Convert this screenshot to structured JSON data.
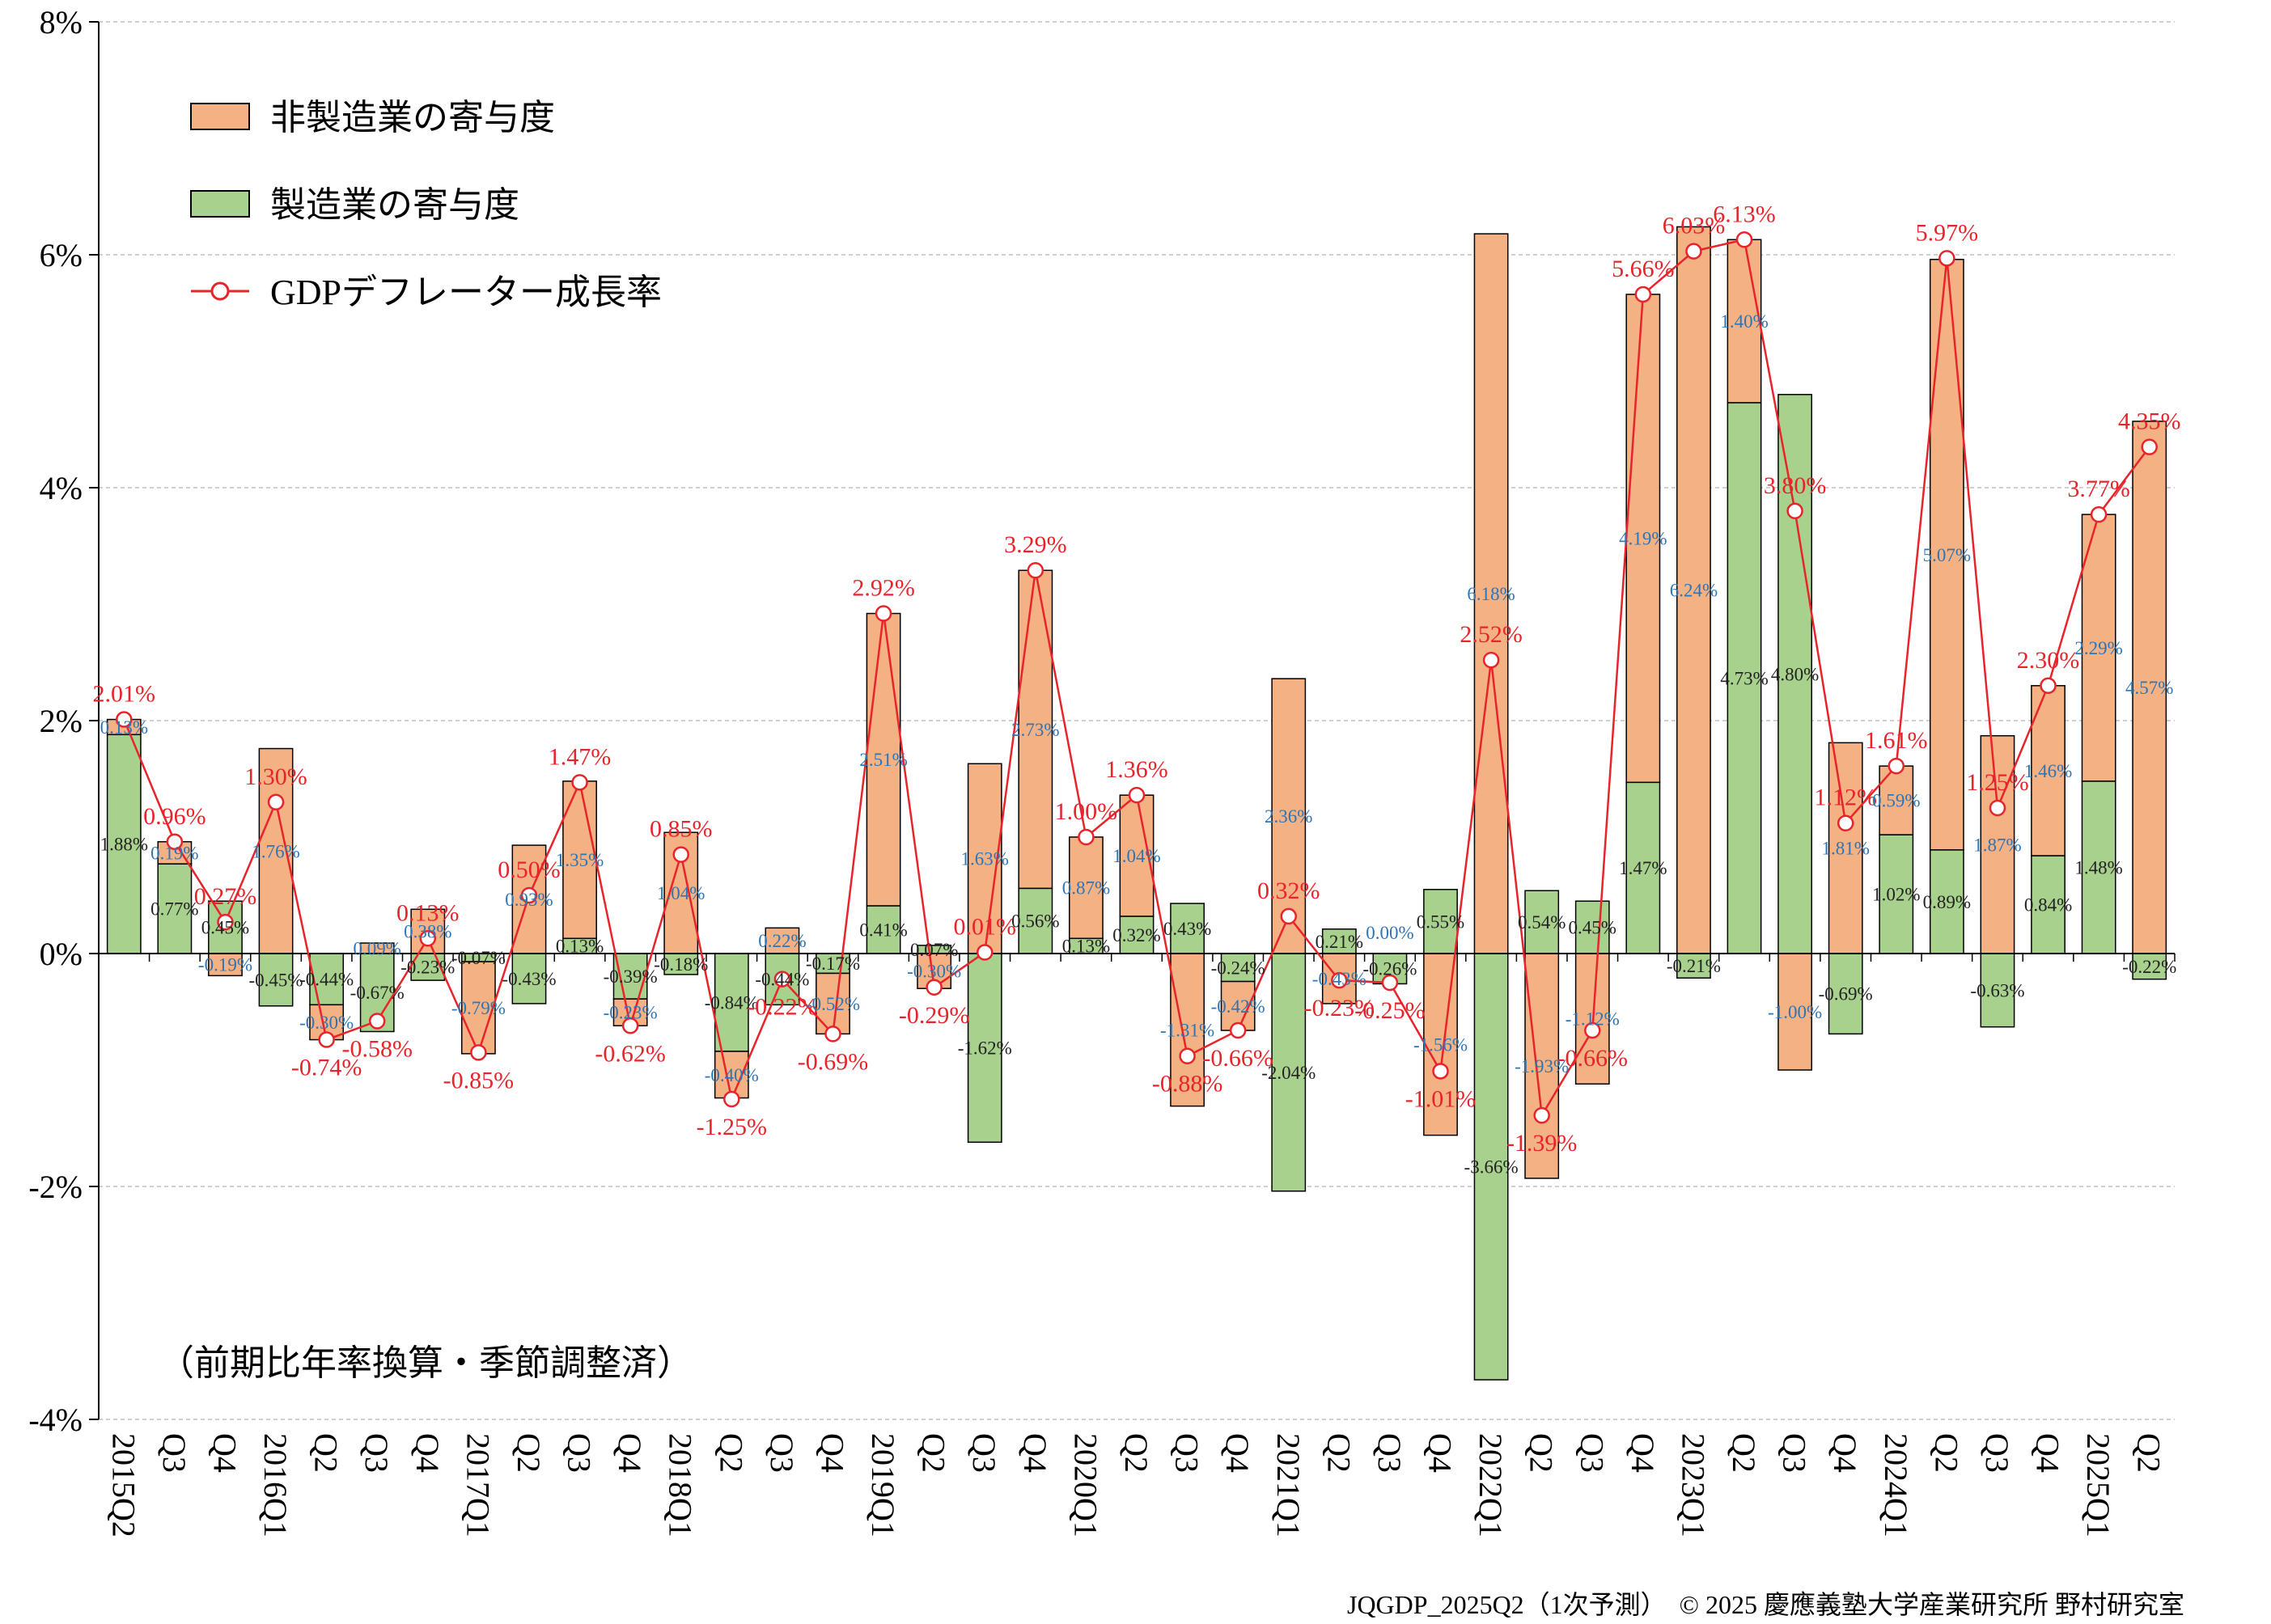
{
  "chart_data": {
    "type": "bar",
    "stacked": true,
    "categories": [
      "2015Q2",
      "Q3",
      "Q4",
      "2016Q1",
      "Q2",
      "Q3",
      "Q4",
      "2017Q1",
      "Q2",
      "Q3",
      "Q4",
      "2018Q1",
      "Q2",
      "Q3",
      "Q4",
      "2019Q1",
      "Q2",
      "Q3",
      "Q4",
      "2020Q1",
      "Q2",
      "Q3",
      "Q4",
      "2021Q1",
      "Q2",
      "Q3",
      "Q4",
      "2022Q1",
      "Q2",
      "Q3",
      "Q4",
      "2023Q1",
      "Q2",
      "Q3",
      "Q4",
      "2024Q1",
      "Q2",
      "Q3",
      "Q4",
      "2025Q1",
      "Q2"
    ],
    "series": [
      {
        "name": "非製造業の寄与度",
        "type": "bar",
        "color": "#f4b183",
        "values": [
          0.13,
          0.19,
          -0.19,
          1.76,
          -0.3,
          0.09,
          0.38,
          -0.79,
          0.93,
          1.35,
          -0.23,
          1.04,
          -0.4,
          0.22,
          -0.52,
          2.51,
          -0.3,
          1.63,
          2.73,
          0.87,
          1.04,
          -1.31,
          -0.42,
          2.36,
          -0.43,
          0.0,
          -1.56,
          6.18,
          -1.93,
          -1.12,
          4.19,
          6.24,
          1.4,
          -1.0,
          1.81,
          0.59,
          5.07,
          1.87,
          1.46,
          2.29,
          4.57
        ]
      },
      {
        "name": "製造業の寄与度",
        "type": "bar",
        "color": "#a9d18e",
        "values": [
          1.88,
          0.77,
          0.45,
          -0.45,
          -0.44,
          -0.67,
          -0.23,
          -0.07,
          -0.43,
          0.13,
          -0.39,
          -0.18,
          -0.84,
          -0.44,
          -0.17,
          0.41,
          0.07,
          -1.62,
          0.56,
          0.13,
          0.32,
          0.43,
          -0.24,
          -2.04,
          0.21,
          -0.26,
          0.55,
          -3.66,
          0.54,
          0.45,
          1.47,
          -0.21,
          4.73,
          4.8,
          -0.69,
          1.02,
          0.89,
          -0.63,
          0.84,
          1.48,
          -0.22
        ]
      },
      {
        "name": "GDPデフレーター成長率",
        "type": "line",
        "color": "#e8242b",
        "values": [
          2.01,
          0.96,
          0.27,
          1.3,
          -0.74,
          -0.58,
          0.13,
          -0.85,
          0.5,
          1.47,
          -0.62,
          0.85,
          -1.25,
          -0.22,
          -0.69,
          2.92,
          -0.29,
          0.01,
          3.29,
          1.0,
          1.36,
          -0.88,
          -0.66,
          0.32,
          -0.23,
          -0.25,
          -1.01,
          2.52,
          -1.39,
          -0.66,
          5.66,
          6.03,
          6.13,
          3.8,
          1.12,
          1.61,
          5.97,
          1.25,
          2.3,
          3.77,
          4.35
        ]
      }
    ],
    "label_text": {
      "nonmfg": [
        "0.13%",
        "0.19%",
        "-0.19%",
        "1.76%",
        "-0.30%",
        "0.09%",
        "0.38%",
        "-0.79%",
        "0.93%",
        "1.35%",
        "-0.23%",
        "1.04%",
        "-0.40%",
        "0.22%",
        "-0.52%",
        "2.51%",
        "-0.30%",
        "1.63%",
        "2.73%",
        "0.87%",
        "1.04%",
        "-1.31%",
        "-0.42%",
        "2.36%",
        "-0.43%",
        "0.00%",
        "-1.56%",
        "6.18%",
        "-1.93%",
        "-1.12%",
        "4.19%",
        "6.24%",
        "1.40%",
        "-1.00%",
        "1.81%",
        "0.59%",
        "5.07%",
        "1.87%",
        "1.46%",
        "2.29%",
        "4.57%"
      ],
      "mfg": [
        "1.88%",
        "0.77%",
        "0.45%",
        "-0.45%",
        "-0.44%",
        "-0.67%",
        "-0.23%",
        "-0.07%",
        "-0.43%",
        "0.13%",
        "-0.39%",
        "-0.18%",
        "-0.84%",
        "-0.44%",
        "-0.17%",
        "0.41%",
        "0.07%",
        "-1.62%",
        "0.56%",
        "0.13%",
        "0.32%",
        "0.43%",
        "-0.24%",
        "-2.04%",
        "0.21%",
        "-0.26%",
        "0.55%",
        "-3.66%",
        "0.54%",
        "0.45%",
        "1.47%",
        "-0.21%",
        "4.73%",
        "4.80%",
        "-0.69%",
        "1.02%",
        "0.89%",
        "-0.63%",
        "0.84%",
        "1.48%",
        "-0.22%"
      ],
      "gdp": [
        "2.01%",
        "0.96%",
        "0.27%",
        "1.30%",
        "-0.74%",
        "-0.58%",
        "0.13%",
        "-0.85%",
        "0.50%",
        "1.47%",
        "-0.62%",
        "0.85%",
        "-1.25%",
        "-0.22%",
        "-0.69%",
        "2.92%",
        "-0.29%",
        "0.01%",
        "3.29%",
        "1.00%",
        "1.36%",
        "-0.88%",
        "-0.66%",
        "0.32%",
        "-0.23%",
        "-0.25%",
        "-1.01%",
        "2.52%",
        "-1.39%",
        "-0.66%",
        "5.66%",
        "6.03%",
        "6.13%",
        "3.80%",
        "1.12%",
        "1.61%",
        "5.97%",
        "1.25%",
        "2.30%",
        "3.77%",
        "4.35%"
      ]
    },
    "ylim": [
      -4,
      8
    ],
    "yticks": [
      8,
      6,
      4,
      2,
      0,
      -2,
      -4
    ],
    "ytick_labels": [
      "8%",
      "6%",
      "4%",
      "2%",
      "0%",
      "-2%",
      "-4%"
    ],
    "grid": true,
    "legend": {
      "position": "top-left",
      "entries": [
        "非製造業の寄与度",
        "製造業の寄与度",
        "GDPデフレーター成長率"
      ]
    },
    "annotation": "（前期比年率換算・季節調整済）",
    "footer": "JQGDP_2025Q2（1次予測）　© 2025 慶應義塾大学産業研究所 野村研究室",
    "colors": {
      "nonmfg": "#f4b183",
      "mfg": "#a9d18e",
      "line": "#e8242b",
      "top_label": "#2e75b6",
      "grid": "#bfbfbf"
    }
  }
}
